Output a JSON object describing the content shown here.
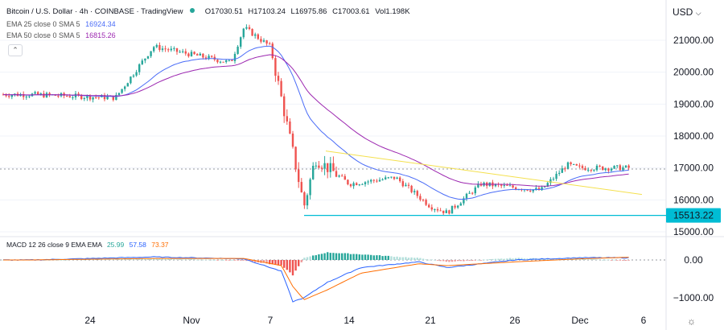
{
  "header": {
    "title": "Bitcoin / U.S. Dollar · 4h · COINBASE · TradingView",
    "ohlc": {
      "o": "O17030.51",
      "h": "H17103.24",
      "l": "L16975.86",
      "c": "C17003.61",
      "vol": "Vol1.198K"
    }
  },
  "indicators": {
    "ema25": {
      "label": "EMA 25 close 0 SMA 5",
      "value": "16924.34",
      "color": "#4a6cf7"
    },
    "ema50": {
      "label": "EMA 50 close 0 SMA 5",
      "value": "16815.26",
      "color": "#9c27b0"
    },
    "macd": {
      "label": "MACD 12 26 close 9 EMA EMA",
      "v1": "25.99",
      "v2": "57.58",
      "v3": "73.37"
    }
  },
  "currency_label": "USD",
  "colors": {
    "up": "#26a69a",
    "down": "#ef5350",
    "level": "#00bcd4",
    "trend": "#f4e04d",
    "macd_line": "#2962ff",
    "signal_line": "#ff6d00"
  },
  "chart_data": [
    {
      "type": "candlestick",
      "symbol": "BTC/USD",
      "interval": "4h",
      "y_ticks": [
        "21000.00",
        "20000.00",
        "19000.00",
        "18000.00",
        "17000.00",
        "16000.00",
        "15000.00"
      ],
      "ylim": [
        14700,
        21750
      ],
      "x_ticks": [
        "24",
        "Nov",
        "7",
        "14",
        "21",
        "26",
        "Dec",
        "6"
      ],
      "price_label": "15513.22",
      "support_level": 15513.22,
      "trendline": [
        [
          17530,
          16170
        ]
      ],
      "key_points": [
        {
          "date": "Oct 20",
          "price": 19300
        },
        {
          "date": "Oct 26",
          "price": 19200
        },
        {
          "date": "Oct 29",
          "price": 20800
        },
        {
          "date": "Nov 4",
          "price": 20300
        },
        {
          "date": "Nov 5",
          "price": 21400
        },
        {
          "date": "Nov 7",
          "price": 20800
        },
        {
          "date": "Nov 9",
          "price": 17500
        },
        {
          "date": "Nov 10",
          "price": 15800
        },
        {
          "date": "Nov 11",
          "price": 17300
        },
        {
          "date": "Nov 14",
          "price": 16500
        },
        {
          "date": "Nov 18",
          "price": 16700
        },
        {
          "date": "Nov 21",
          "price": 15800
        },
        {
          "date": "Nov 22",
          "price": 15600
        },
        {
          "date": "Nov 24",
          "price": 16500
        },
        {
          "date": "Nov 28",
          "price": 16300
        },
        {
          "date": "Nov 30",
          "price": 17100
        },
        {
          "date": "Dec 1",
          "price": 17000
        },
        {
          "date": "Dec 4",
          "price": 17003.61
        }
      ]
    },
    {
      "type": "macd",
      "y_ticks": [
        "0.00",
        "−1000.00"
      ],
      "ylim": [
        -1250,
        350
      ],
      "key_points": [
        {
          "date": "Oct 20",
          "macd": 0,
          "signal": 0
        },
        {
          "date": "Oct 29",
          "macd": 80,
          "signal": 40
        },
        {
          "date": "Nov 5",
          "macd": 30,
          "signal": 40
        },
        {
          "date": "Nov 8",
          "macd": -300,
          "signal": -150
        },
        {
          "date": "Nov 9",
          "macd": -1100,
          "signal": -700
        },
        {
          "date": "Nov 10",
          "macd": -1000,
          "signal": -1050
        },
        {
          "date": "Nov 12",
          "macd": -600,
          "signal": -800
        },
        {
          "date": "Nov 15",
          "macd": -200,
          "signal": -350
        },
        {
          "date": "Nov 20",
          "macd": -50,
          "signal": -100
        },
        {
          "date": "Nov 22",
          "macd": -200,
          "signal": -150
        },
        {
          "date": "Nov 26",
          "macd": 0,
          "signal": -50
        },
        {
          "date": "Dec 1",
          "macd": 60,
          "signal": 30
        },
        {
          "date": "Dec 4",
          "macd": 57.58,
          "signal": 73.37
        }
      ]
    }
  ]
}
